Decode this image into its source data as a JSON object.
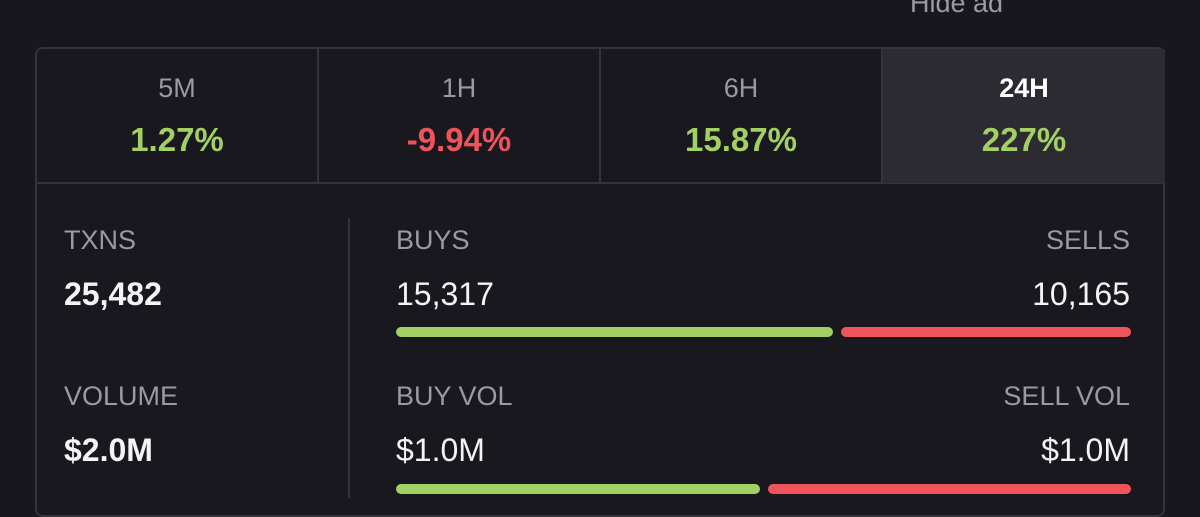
{
  "header": {
    "hide_ad": "Hide ad"
  },
  "tabs": [
    {
      "label": "5M",
      "change": "1.27%"
    },
    {
      "label": "1H",
      "change": "-9.94%"
    },
    {
      "label": "6H",
      "change": "15.87%"
    },
    {
      "label": "24H",
      "change": "227%"
    }
  ],
  "stats": {
    "txns": {
      "label": "TXNS",
      "value": "25,482"
    },
    "buys": {
      "label": "BUYS",
      "value": "15,317"
    },
    "sells": {
      "label": "SELLS",
      "value": "10,165"
    },
    "volume": {
      "label": "VOLUME",
      "value": "$2.0M"
    },
    "buy_vol": {
      "label": "BUY VOL",
      "value": "$1.0M"
    },
    "sell_vol": {
      "label": "SELL VOL",
      "value": "$1.0M"
    }
  }
}
